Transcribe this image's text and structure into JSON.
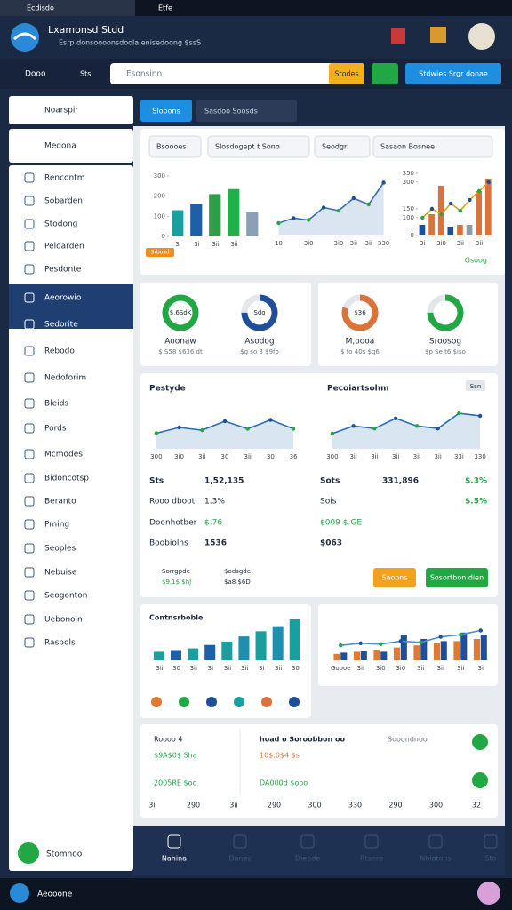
{
  "browser": {
    "tabs": [
      "Ecdisdo",
      "Etfe"
    ]
  },
  "header": {
    "title": "Lxamonsd Stdd",
    "subtitle": "Esrp donsoooonsdoola enisedoong $ssS"
  },
  "toolbar": {
    "menu": "Dooo",
    "select": "Sts",
    "search": "Esonsinn",
    "button_primary": "Stodes",
    "button_secondary": "Stdwies Srgr donae"
  },
  "sidebar": {
    "section": "Noarspir",
    "panel": "Medona",
    "items": [
      "Rencontm",
      "Sobarden",
      "Stodong",
      "Peloarden",
      "Pesdonte",
      "Aeorowio",
      "Sedorite",
      "Rebodo",
      "Nedoforim",
      "Bleids",
      "Pords",
      "Mcmodes",
      "Bidoncotsp",
      "Beranto",
      "Pming",
      "Seoples",
      "Nebuise",
      "Seogonton",
      "Uebonoin",
      "Rasbols"
    ],
    "footer": "Stomnoo"
  },
  "main": {
    "tabs": [
      "Slobons",
      "Sasdoo Soosds"
    ],
    "filters": [
      "Bsoooes",
      "Slosdogept t Sono",
      "Seodgr",
      "Sasaon Bosnee"
    ],
    "overview": {
      "badge": "Srbosd",
      "footer": "Gsoog",
      "bar_chart": {
        "type": "bar",
        "categories": [
          "3i",
          "3i",
          "3ii",
          "3ii",
          null
        ],
        "ylim": [
          0,
          300
        ],
        "yticks": [
          0,
          100,
          200,
          300
        ],
        "series": [
          {
            "type": "bar",
            "colors": [
              "#1a9e9e",
              "#1f5fa8",
              "#2e9d48",
              "#22b04b",
              "#8aa0b8"
            ],
            "values": [
              130,
              160,
              210,
              235,
              120
            ]
          }
        ]
      },
      "line_chart": {
        "type": "area",
        "categories": [
          "10",
          null,
          "3i0",
          null,
          "3i0",
          "3ii",
          "3ii",
          "330"
        ],
        "ylim": [
          0,
          100
        ],
        "series": [
          {
            "type": "area",
            "color": "#3a6fb0",
            "values": [
              20,
              28,
              25,
              45,
              40,
              60,
              50,
              85
            ]
          }
        ]
      },
      "combo_chart": {
        "type": "bar",
        "categories": [
          "3i",
          null,
          "3i0",
          null,
          "3ii",
          null,
          "3ii",
          null
        ],
        "ylim": [
          0,
          350
        ],
        "yticks": [
          0,
          100,
          150,
          300,
          350
        ],
        "series": [
          {
            "type": "bar",
            "colors": [
              "#1f4f9a",
              "#d9733a",
              "#d9733a",
              "#1f4f9a",
              "#d9733a",
              "#8c9aa8",
              "#d9733a",
              "#d9733a"
            ],
            "values": [
              60,
              120,
              280,
              50,
              60,
              60,
              250,
              320
            ]
          },
          {
            "type": "line",
            "color": "#e0a020",
            "values": [
              100,
              150,
              120,
              180,
              140,
              200,
              250,
              300
            ]
          }
        ]
      }
    },
    "donuts": [
      {
        "value": 100,
        "color": "#22a745",
        "center": "$,6SdK",
        "label": "Aoonaw",
        "sub": "$ S58 $636 dt"
      },
      {
        "value": 75,
        "color": "#1f4f9a",
        "center": "Sdo",
        "label": "Asodog",
        "sub": "$g so 3 $9fo"
      },
      {
        "value": 80,
        "color": "#d9733a",
        "center": "$36",
        "label": "M,oooa",
        "sub": "$ fo 40s $g6"
      },
      {
        "value": 75,
        "color": "#22a745",
        "label": "Sroosog",
        "sub": "$p Se t6 $iso"
      }
    ],
    "performance": {
      "left_title": "Pestyde",
      "right_title": "Pecoiartsohm",
      "badge": "Ssn",
      "left_chart": {
        "type": "area",
        "categories": [
          "300",
          "3i0",
          "3ii",
          "30",
          "3ii",
          "30",
          "36"
        ],
        "ylim": [
          0,
          100
        ],
        "series": [
          {
            "type": "area",
            "color": "#2a6db0",
            "values": [
              35,
              48,
              42,
              62,
              45,
              65,
              45
            ]
          }
        ]
      },
      "right_chart": {
        "type": "area",
        "categories": [
          "300",
          "3ii",
          "3ii",
          "3ii",
          "3ii",
          "3ii",
          "33i",
          "330"
        ],
        "ylim": [
          0,
          100
        ],
        "series": [
          {
            "type": "area",
            "color": "#2a6db0",
            "values": [
              30,
              45,
              40,
              60,
              45,
              40,
              70,
              65
            ]
          }
        ]
      },
      "stats": [
        "Sts",
        "1,52,135",
        "Rooo dboot",
        "1.3%",
        "Doonhotber",
        "$.76",
        "Boobiolns",
        "1536",
        "Sots",
        "331,896",
        "$.3%",
        "Sois",
        "$.5%",
        "$009 $.GE",
        "$063",
        "Sorrgpde",
        "$9.1$ $hJ",
        "$odsgde",
        "$a8 $6D"
      ],
      "buttons": [
        "Saoons",
        "Sosortbon dien"
      ]
    },
    "contributions": {
      "title": "Contnsrboble",
      "chart": {
        "type": "bar",
        "categories": [
          "3ii",
          "30",
          "3ii",
          "3i",
          "3ii",
          "3ii",
          "3i",
          "3ii",
          "30"
        ],
        "ylim": [
          0,
          50
        ],
        "series": [
          {
            "type": "bar",
            "colors": [
              "#1a9e9e",
              "#1f5fa8",
              "#1a9e9e",
              "#1f5fa8",
              "#1a9e9e",
              "#1f8fb0",
              "#1a9e9e",
              "#1f8fb0",
              "#1a9e9e"
            ],
            "values": [
              10,
              12,
              14,
              18,
              22,
              28,
              34,
              40,
              48
            ]
          }
        ]
      }
    },
    "comparison": {
      "chart": {
        "type": "bar",
        "categories": [
          "Goooe",
          "3ii",
          "3i0",
          "3i0",
          "3ii",
          "3ii",
          "3ii",
          "3i"
        ],
        "ylim": [
          0,
          100
        ],
        "series": [
          {
            "type": "bar",
            "color": "#e07a30",
            "values": [
              15,
              20,
              25,
              30,
              35,
              40,
              45,
              50
            ]
          },
          {
            "type": "bar",
            "color": "#1f4f9a",
            "values": [
              18,
              22,
              20,
              60,
              50,
              45,
              65,
              60
            ]
          },
          {
            "type": "line",
            "color": "#4a90d9",
            "values": [
              35,
              40,
              38,
              45,
              42,
              55,
              60,
              70
            ]
          }
        ]
      }
    },
    "summary": {
      "texts": [
        "Roooo 4",
        "$9A$0$ Sha",
        "2005RE $oo",
        "hoad o Soroobbon oo",
        "10$.0$4 $s",
        "DA000d $ooo",
        "Sooondnoo"
      ],
      "axis_labels": [
        "3ii",
        "290",
        "3ii",
        "290",
        "300",
        "330",
        "290",
        "300",
        "32"
      ]
    }
  },
  "bottom_nav": [
    "Nahina",
    "Danes",
    "Dieode",
    "Rtsnro",
    "Nhiotons",
    "Sto"
  ],
  "taskbar": {
    "label": "Aeooone"
  }
}
